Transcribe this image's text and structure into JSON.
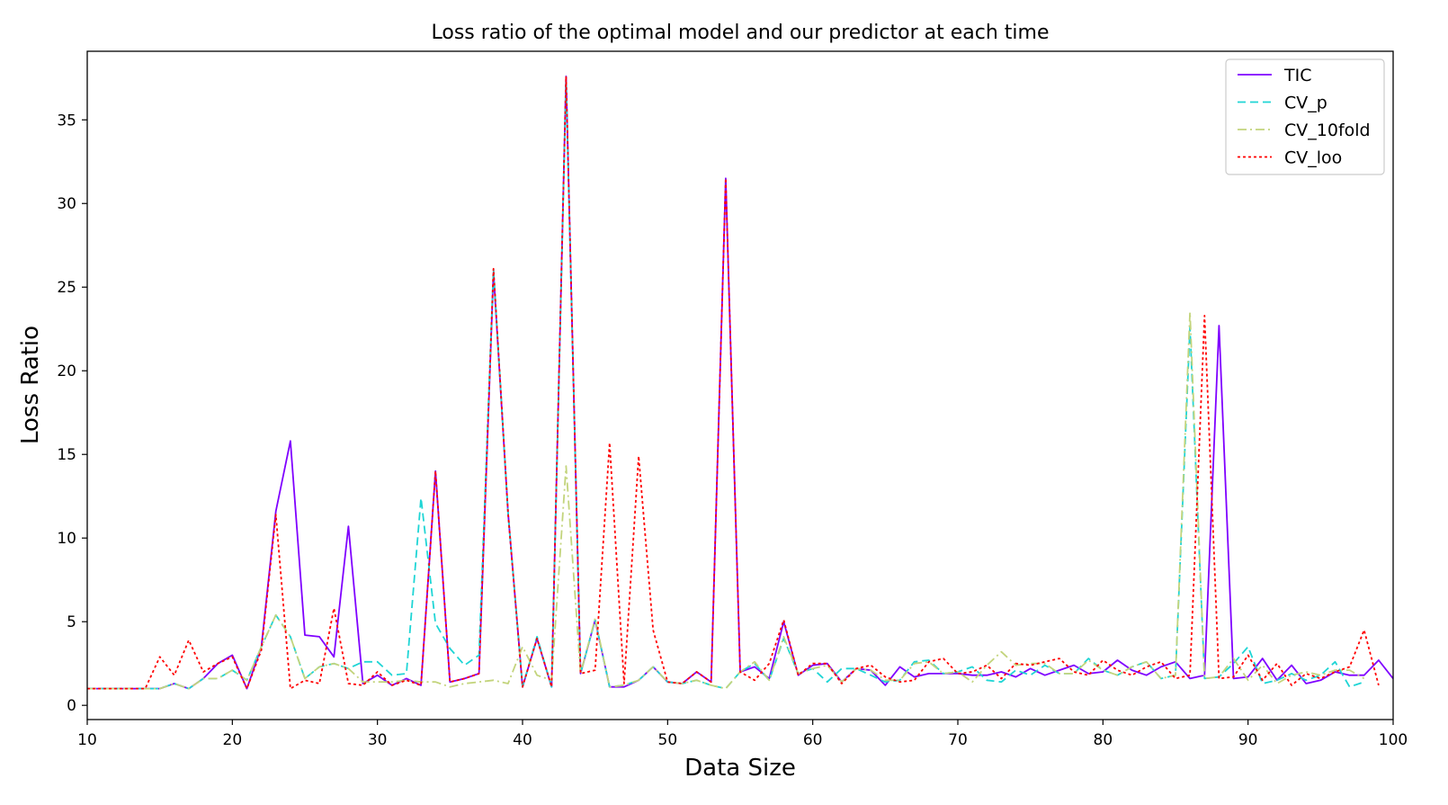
{
  "chart_data": {
    "type": "line",
    "title": "Loss ratio of the optimal model and our predictor at each time",
    "xlabel": "Data Size",
    "ylabel": "Loss Ratio",
    "xlim": [
      10,
      100
    ],
    "ylim": [
      -0.85,
      39.1
    ],
    "xticks": [
      10,
      20,
      30,
      40,
      50,
      60,
      70,
      80,
      90,
      100
    ],
    "yticks": [
      0,
      5,
      10,
      15,
      20,
      25,
      30,
      35
    ],
    "grid": false,
    "legend_position": "top-right",
    "x_start": 10,
    "series": [
      {
        "name": "TIC",
        "color": "#7f00ff",
        "dash": "solid",
        "values": [
          1.0,
          1.0,
          1.0,
          1.0,
          1.0,
          1.0,
          1.3,
          1.0,
          1.6,
          2.5,
          3.0,
          1.0,
          3.5,
          11.6,
          15.8,
          4.2,
          4.1,
          2.9,
          10.7,
          1.3,
          1.8,
          1.2,
          1.6,
          1.2,
          14.0,
          1.4,
          1.6,
          1.9,
          25.9,
          11.5,
          1.1,
          4.0,
          1.1,
          37.6,
          1.9,
          5.1,
          1.1,
          1.1,
          1.5,
          2.3,
          1.4,
          1.3,
          2.0,
          1.4,
          31.5,
          2.0,
          2.3,
          1.6,
          5.0,
          1.8,
          2.4,
          2.5,
          1.4,
          2.2,
          2.1,
          1.2,
          2.3,
          1.7,
          1.9,
          1.9,
          1.9,
          1.8,
          1.8,
          2.0,
          1.7,
          2.2,
          1.8,
          2.1,
          2.4,
          1.9,
          2.0,
          2.7,
          2.1,
          1.8,
          2.3,
          2.6,
          1.6,
          1.8,
          22.7,
          1.6,
          1.7,
          2.8,
          1.5,
          2.4,
          1.3,
          1.5,
          2.0,
          1.8,
          1.8,
          2.7,
          1.6
        ]
      },
      {
        "name": "CV_p",
        "color": "#1fd5d5",
        "dash": "dashed",
        "values": [
          1.0,
          1.0,
          1.0,
          1.0,
          1.0,
          1.0,
          1.3,
          1.0,
          1.6,
          1.6,
          2.1,
          1.5,
          3.5,
          5.4,
          4.1,
          1.6,
          2.3,
          2.5,
          2.2,
          2.6,
          2.6,
          1.8,
          1.9,
          12.4,
          4.9,
          3.4,
          2.4,
          3.0,
          26.1,
          11.5,
          1.1,
          4.1,
          1.1,
          37.3,
          1.9,
          5.1,
          1.1,
          1.2,
          1.5,
          2.3,
          1.4,
          1.3,
          1.5,
          1.2,
          1.0,
          2.0,
          2.5,
          1.5,
          4.0,
          1.9,
          2.2,
          1.4,
          2.2,
          2.2,
          1.8,
          1.4,
          1.5,
          2.6,
          2.7,
          1.9,
          2.0,
          2.3,
          1.5,
          1.4,
          2.1,
          1.8,
          2.4,
          1.9,
          1.9,
          2.8,
          2.1,
          1.8,
          2.3,
          2.6,
          1.6,
          1.8,
          22.6,
          1.6,
          1.7,
          2.5,
          3.5,
          1.3,
          1.5,
          1.9,
          1.5,
          1.8,
          2.6,
          1.1,
          1.4
        ]
      },
      {
        "name": "CV_10fold",
        "color": "#c3d47c",
        "dash": "dashdot",
        "values": [
          1.0,
          1.0,
          1.0,
          1.0,
          1.0,
          1.0,
          1.3,
          1.0,
          1.6,
          1.6,
          2.1,
          1.5,
          3.5,
          5.4,
          4.1,
          1.6,
          2.3,
          2.5,
          2.2,
          1.4,
          1.4,
          1.4,
          1.5,
          1.4,
          1.4,
          1.1,
          1.3,
          1.4,
          1.5,
          1.3,
          3.5,
          1.8,
          1.5,
          14.3,
          1.9,
          5.2,
          1.1,
          1.2,
          1.5,
          2.3,
          1.4,
          1.3,
          1.5,
          1.2,
          1.0,
          2.0,
          2.6,
          1.5,
          4.1,
          1.9,
          2.2,
          2.4,
          1.4,
          2.2,
          2.1,
          1.5,
          1.5,
          2.5,
          2.6,
          1.9,
          2.0,
          1.4,
          2.4,
          3.2,
          2.4,
          2.5,
          2.5,
          1.9,
          1.9,
          2.7,
          2.1,
          1.8,
          2.3,
          2.6,
          1.6,
          1.8,
          23.5,
          1.6,
          1.7,
          2.8,
          1.5,
          2.4,
          1.3,
          1.8,
          2.0,
          1.8,
          2.1,
          2.1,
          1.6
        ]
      },
      {
        "name": "CV_loo",
        "color": "#ff0000",
        "dash": "dotted",
        "values": [
          1.0,
          1.0,
          1.0,
          1.0,
          1.0,
          2.9,
          1.8,
          3.9,
          2.0,
          2.5,
          2.9,
          1.0,
          3.3,
          11.4,
          1.0,
          1.5,
          1.3,
          5.8,
          1.3,
          1.2,
          2.0,
          1.2,
          1.5,
          1.2,
          14.0,
          1.4,
          1.6,
          1.9,
          26.1,
          11.5,
          1.1,
          4.0,
          1.1,
          37.6,
          1.9,
          2.1,
          15.7,
          1.3,
          14.9,
          4.5,
          1.4,
          1.3,
          2.0,
          1.4,
          31.5,
          2.0,
          1.5,
          2.5,
          5.1,
          1.8,
          2.5,
          2.5,
          1.3,
          2.2,
          2.4,
          1.7,
          1.4,
          1.5,
          2.6,
          2.8,
          1.9,
          2.0,
          2.4,
          1.6,
          2.5,
          2.4,
          2.6,
          2.8,
          2.0,
          1.8,
          2.7,
          2.1,
          1.8,
          2.3,
          2.6,
          1.6,
          1.8,
          23.3,
          1.6,
          1.7,
          3.0,
          1.5,
          2.5,
          1.2,
          1.9,
          1.6,
          2.0,
          2.3,
          4.5,
          1.2
        ]
      }
    ]
  }
}
